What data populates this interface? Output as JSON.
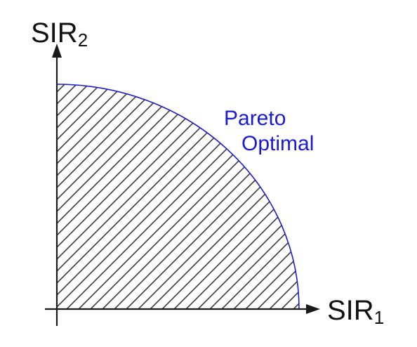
{
  "axes": {
    "x_label_main": "SIR",
    "x_label_sub": "1",
    "y_label_main": "SIR",
    "y_label_sub": "2"
  },
  "region": {
    "label_line1": "Pareto",
    "label_line2": "Optimal",
    "hatched": true
  },
  "colors": {
    "axis": "#1a1a1a",
    "boundary": "#1a1ad6",
    "label": "#1a1ad6",
    "hatch": "#3a3a3a"
  }
}
